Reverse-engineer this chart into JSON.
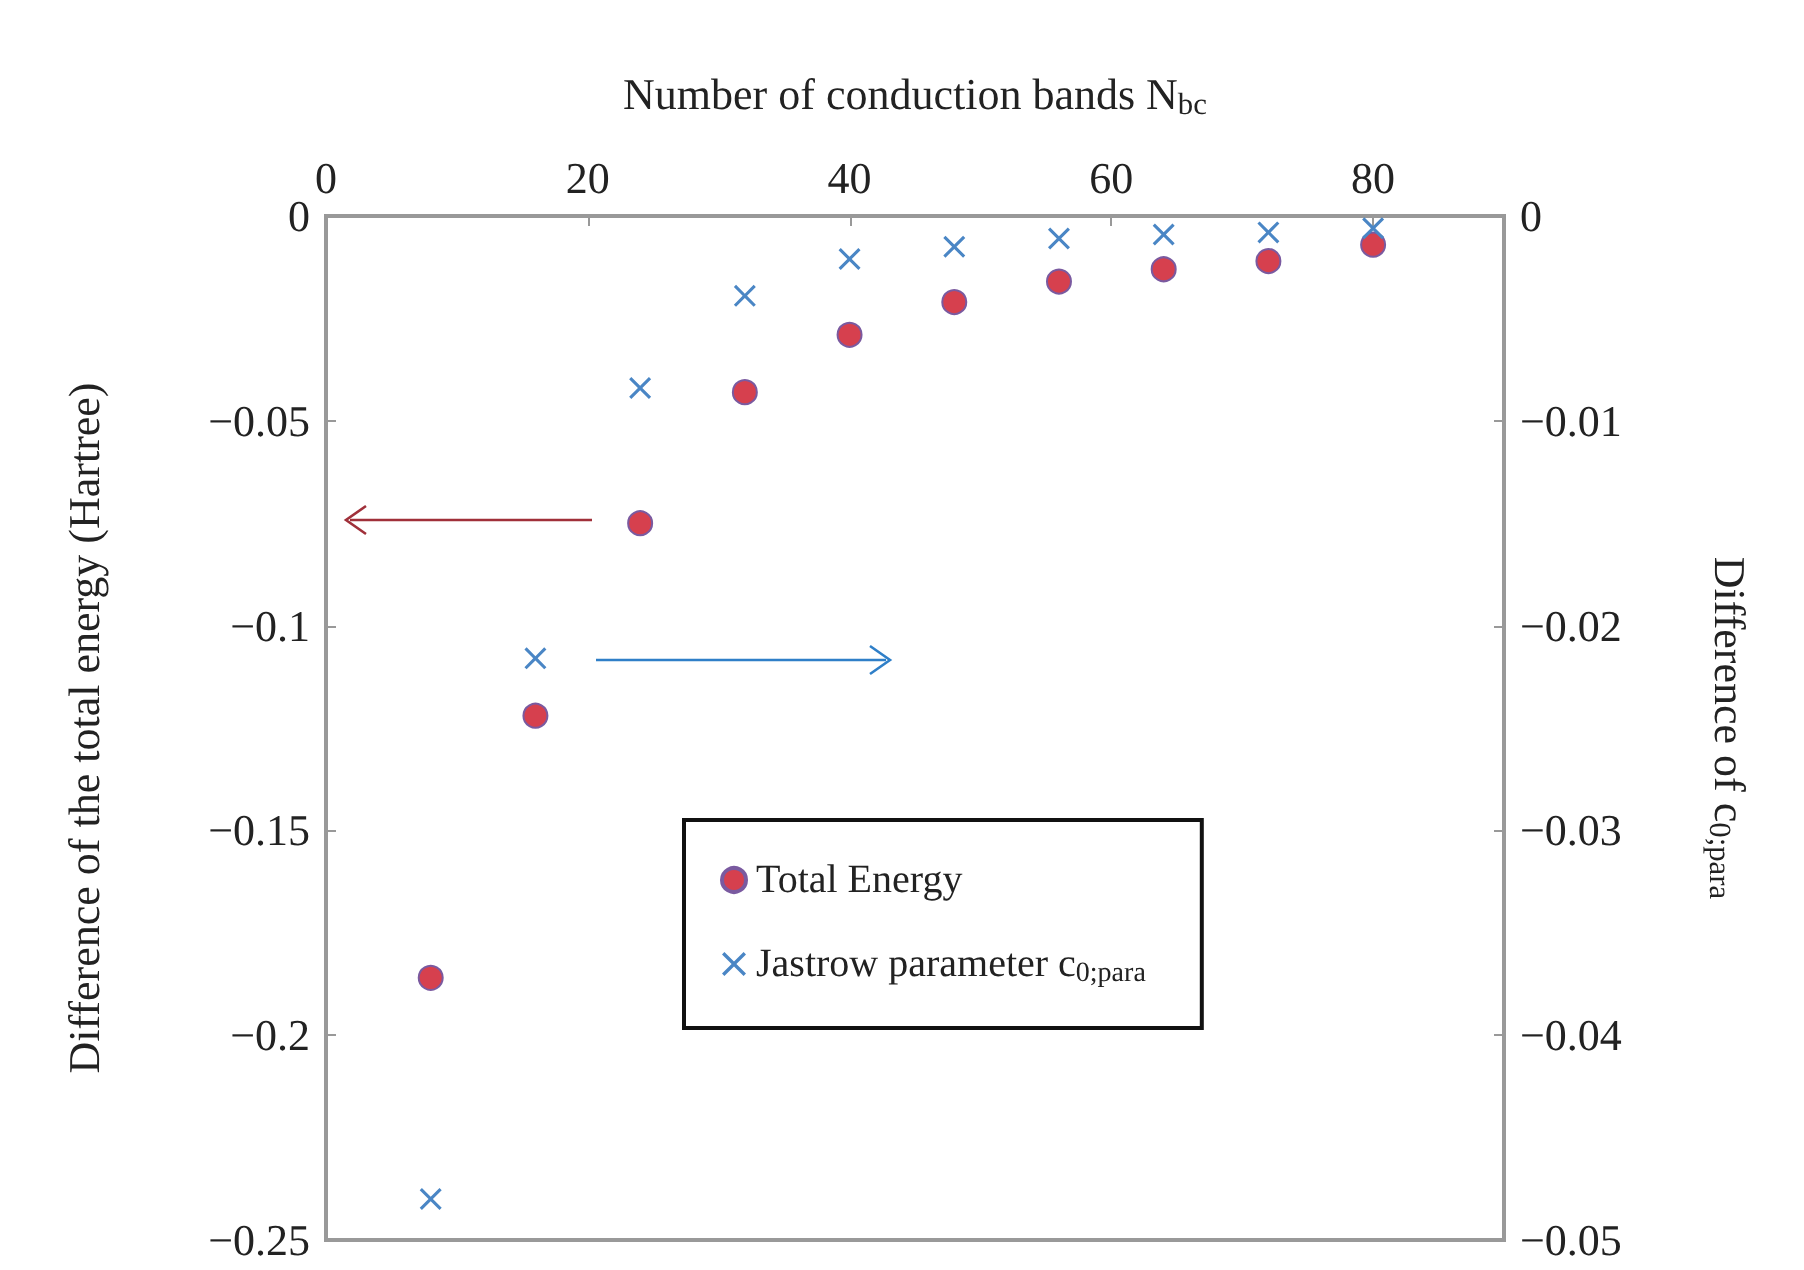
{
  "chart_data": {
    "type": "scatter",
    "xlabel": "Number of conduction bands N$_{bc}$",
    "ylabel": "Difference of the total energy (Hartree)",
    "y2label": "Difference of c$_{0;para}$",
    "x": [
      8,
      16,
      24,
      32,
      40,
      48,
      56,
      64,
      72,
      80
    ],
    "series": [
      {
        "name": "Total Energy",
        "color": "#d6404e",
        "marker": "circle",
        "values": [
          -0.186,
          -0.122,
          -0.075,
          -0.043,
          -0.029,
          -0.021,
          -0.016,
          -0.013,
          -0.011,
          -0.007
        ]
      },
      {
        "name": "Jastrow parameter c$_{0;para}$",
        "color": "#4a86c5",
        "marker": "cross",
        "axis": "y2",
        "values": [
          -0.048,
          -0.0216,
          -0.0084,
          -0.0039,
          -0.0021,
          -0.0015,
          -0.0011,
          -0.0009,
          -0.0008,
          -0.0006
        ]
      }
    ],
    "xlim": [
      0,
      90
    ],
    "xticks": [
      0,
      20,
      40,
      60,
      80
    ],
    "ylim": [
      -0.25,
      0
    ],
    "yticks": [
      {
        "value": -0.25,
        "label": "−0.25"
      },
      {
        "value": -0.2,
        "label": "−0.2"
      },
      {
        "value": -0.15,
        "label": "−0.15"
      },
      {
        "value": -0.1,
        "label": "−0.1"
      },
      {
        "value": -0.05,
        "label": "−0.05"
      },
      0
    ],
    "y2lim": [
      -0.05,
      0
    ],
    "y2ticks": [
      {
        "value": -0.05,
        "label": "−0.05"
      },
      {
        "value": -0.04,
        "label": "−0.04"
      },
      {
        "value": -0.03,
        "label": "−0.03"
      },
      {
        "value": -0.02,
        "label": "−0.02"
      },
      {
        "value": -0.01,
        "label": "−0.01"
      },
      0
    ],
    "grid": false,
    "legend": "bottom right"
  }
}
